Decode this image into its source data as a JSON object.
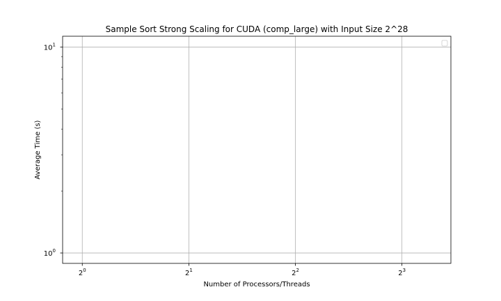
{
  "chart_data": {
    "type": "line",
    "title": "Sample Sort Strong Scaling for CUDA (comp_large) with Input Size 2^28",
    "xlabel": "Number of Processors/Threads",
    "ylabel": "Average Time (s)",
    "x_scale": "log2",
    "y_scale": "log10",
    "xlim": [
      0.88,
      11.0
    ],
    "ylim": [
      0.89,
      11.3
    ],
    "x_ticks": [
      {
        "value": 1,
        "base": "2",
        "exp": "0"
      },
      {
        "value": 2,
        "base": "2",
        "exp": "1"
      },
      {
        "value": 4,
        "base": "2",
        "exp": "2"
      },
      {
        "value": 8,
        "base": "2",
        "exp": "3"
      }
    ],
    "y_ticks": [
      {
        "value": 1,
        "base": "10",
        "exp": "0"
      },
      {
        "value": 10,
        "base": "10",
        "exp": "1"
      }
    ],
    "y_minor_ticks": [
      2,
      3,
      4,
      5,
      6,
      7,
      8,
      9
    ],
    "grid": true,
    "legend": {
      "placement": "top-right",
      "entries": []
    },
    "series": []
  },
  "colors": {
    "grid": "#b0b0b0",
    "axes": "#000000",
    "background": "#ffffff"
  }
}
